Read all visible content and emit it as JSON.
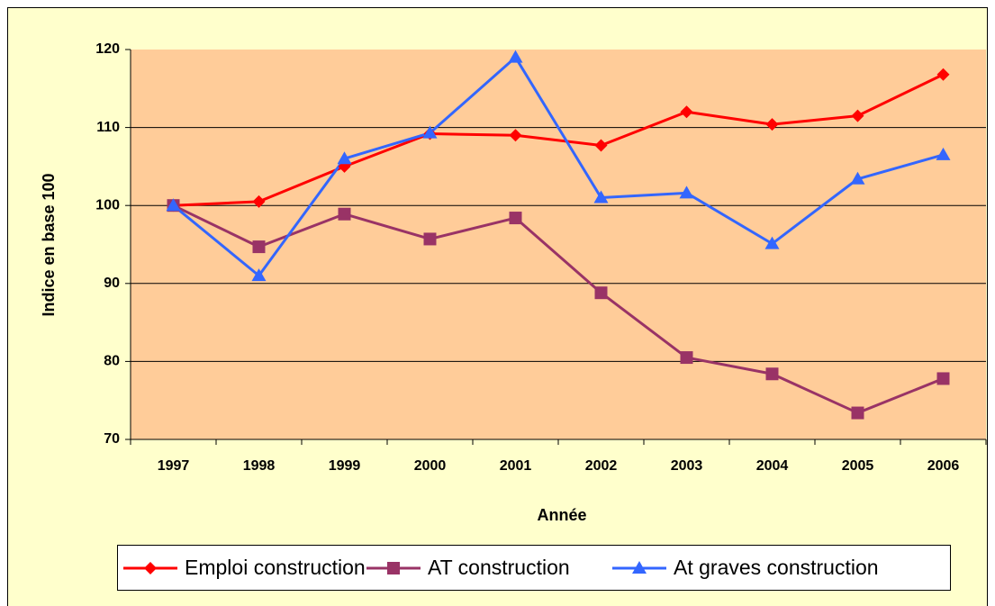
{
  "chart_data": {
    "type": "line",
    "x_label": "Année",
    "y_label": "Indice en base 100",
    "categories": [
      "1997",
      "1998",
      "1999",
      "2000",
      "2001",
      "2002",
      "2003",
      "2004",
      "2005",
      "2006"
    ],
    "series": [
      {
        "name": "Emploi construction",
        "color": "#ff0000",
        "marker": "diamond",
        "values": [
          100,
          100.5,
          105,
          109.2,
          109,
          107.7,
          112,
          110.4,
          111.5,
          116.8
        ]
      },
      {
        "name": "AT construction",
        "color": "#993366",
        "marker": "square",
        "values": [
          100,
          94.7,
          98.9,
          95.7,
          98.4,
          88.8,
          80.5,
          78.4,
          73.4,
          77.8
        ]
      },
      {
        "name": "At graves construction",
        "color": "#3366ff",
        "marker": "triangle",
        "values": [
          100,
          91,
          106,
          109.3,
          119,
          101,
          101.6,
          95.1,
          103.4,
          106.5
        ]
      }
    ],
    "ylim": [
      70,
      120
    ],
    "yticks": [
      70,
      80,
      90,
      100,
      110,
      120
    ],
    "grid": true,
    "legend": "bottom"
  }
}
